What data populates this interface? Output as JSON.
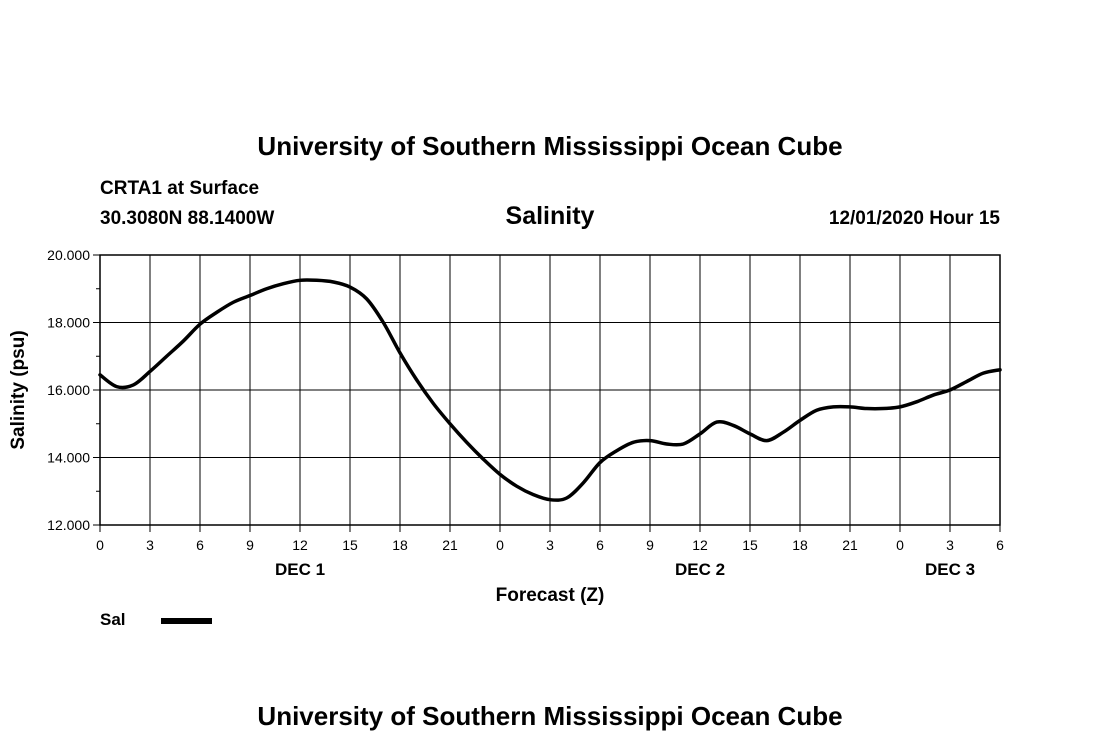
{
  "header": {
    "title": "University of Southern Mississippi Ocean Cube",
    "station": "CRTA1 at Surface",
    "coords": "30.3080N 88.1400W",
    "variable": "Salinity",
    "datetime": "12/01/2020 Hour 15"
  },
  "footer": {
    "title": "University of Southern Mississippi Ocean Cube"
  },
  "chart_data": {
    "type": "line",
    "title": "Salinity",
    "xlabel": "Forecast (Z)",
    "ylabel": "Salinity (psu)",
    "xlim": [
      0,
      54
    ],
    "ylim": [
      12,
      20
    ],
    "grid": true,
    "x_ticks": [
      0,
      3,
      6,
      9,
      12,
      15,
      18,
      21,
      24,
      27,
      30,
      33,
      36,
      39,
      42,
      45,
      48,
      51,
      54
    ],
    "x_tick_labels": [
      "0",
      "3",
      "6",
      "9",
      "12",
      "15",
      "18",
      "21",
      "0",
      "3",
      "6",
      "9",
      "12",
      "15",
      "18",
      "21",
      "0",
      "3",
      "6"
    ],
    "y_ticks": [
      12,
      14,
      16,
      18,
      20
    ],
    "y_tick_labels": [
      "12.000",
      "14.000",
      "16.000",
      "18.000",
      "20.000"
    ],
    "date_labels": [
      {
        "label": "DEC 1",
        "x": 12
      },
      {
        "label": "DEC 2",
        "x": 36
      },
      {
        "label": "DEC 3",
        "x": 51
      }
    ],
    "legend": [
      {
        "name": "Sal",
        "color": "#000000"
      }
    ],
    "legend_position": "bottom-left",
    "series": [
      {
        "name": "Sal",
        "color": "#000000",
        "x": [
          0,
          1,
          2,
          3,
          4,
          5,
          6,
          7,
          8,
          9,
          10,
          11,
          12,
          13,
          14,
          15,
          16,
          17,
          18,
          19,
          20,
          21,
          22,
          23,
          24,
          25,
          26,
          27,
          28,
          29,
          30,
          31,
          32,
          33,
          34,
          35,
          36,
          37,
          38,
          39,
          40,
          41,
          42,
          43,
          44,
          45,
          46,
          47,
          48,
          49,
          50,
          51,
          52,
          53,
          54
        ],
        "y": [
          16.45,
          16.1,
          16.15,
          16.55,
          17.0,
          17.45,
          17.95,
          18.3,
          18.6,
          18.8,
          19.0,
          19.15,
          19.25,
          19.25,
          19.2,
          19.05,
          18.7,
          18.0,
          17.1,
          16.3,
          15.6,
          15.0,
          14.45,
          13.95,
          13.5,
          13.15,
          12.9,
          12.75,
          12.8,
          13.25,
          13.85,
          14.2,
          14.45,
          14.5,
          14.4,
          14.4,
          14.7,
          15.05,
          14.95,
          14.7,
          14.5,
          14.75,
          15.1,
          15.4,
          15.5,
          15.5,
          15.45,
          15.45,
          15.5,
          15.65,
          15.85,
          16.0,
          16.25,
          16.5,
          16.6
        ]
      }
    ]
  }
}
